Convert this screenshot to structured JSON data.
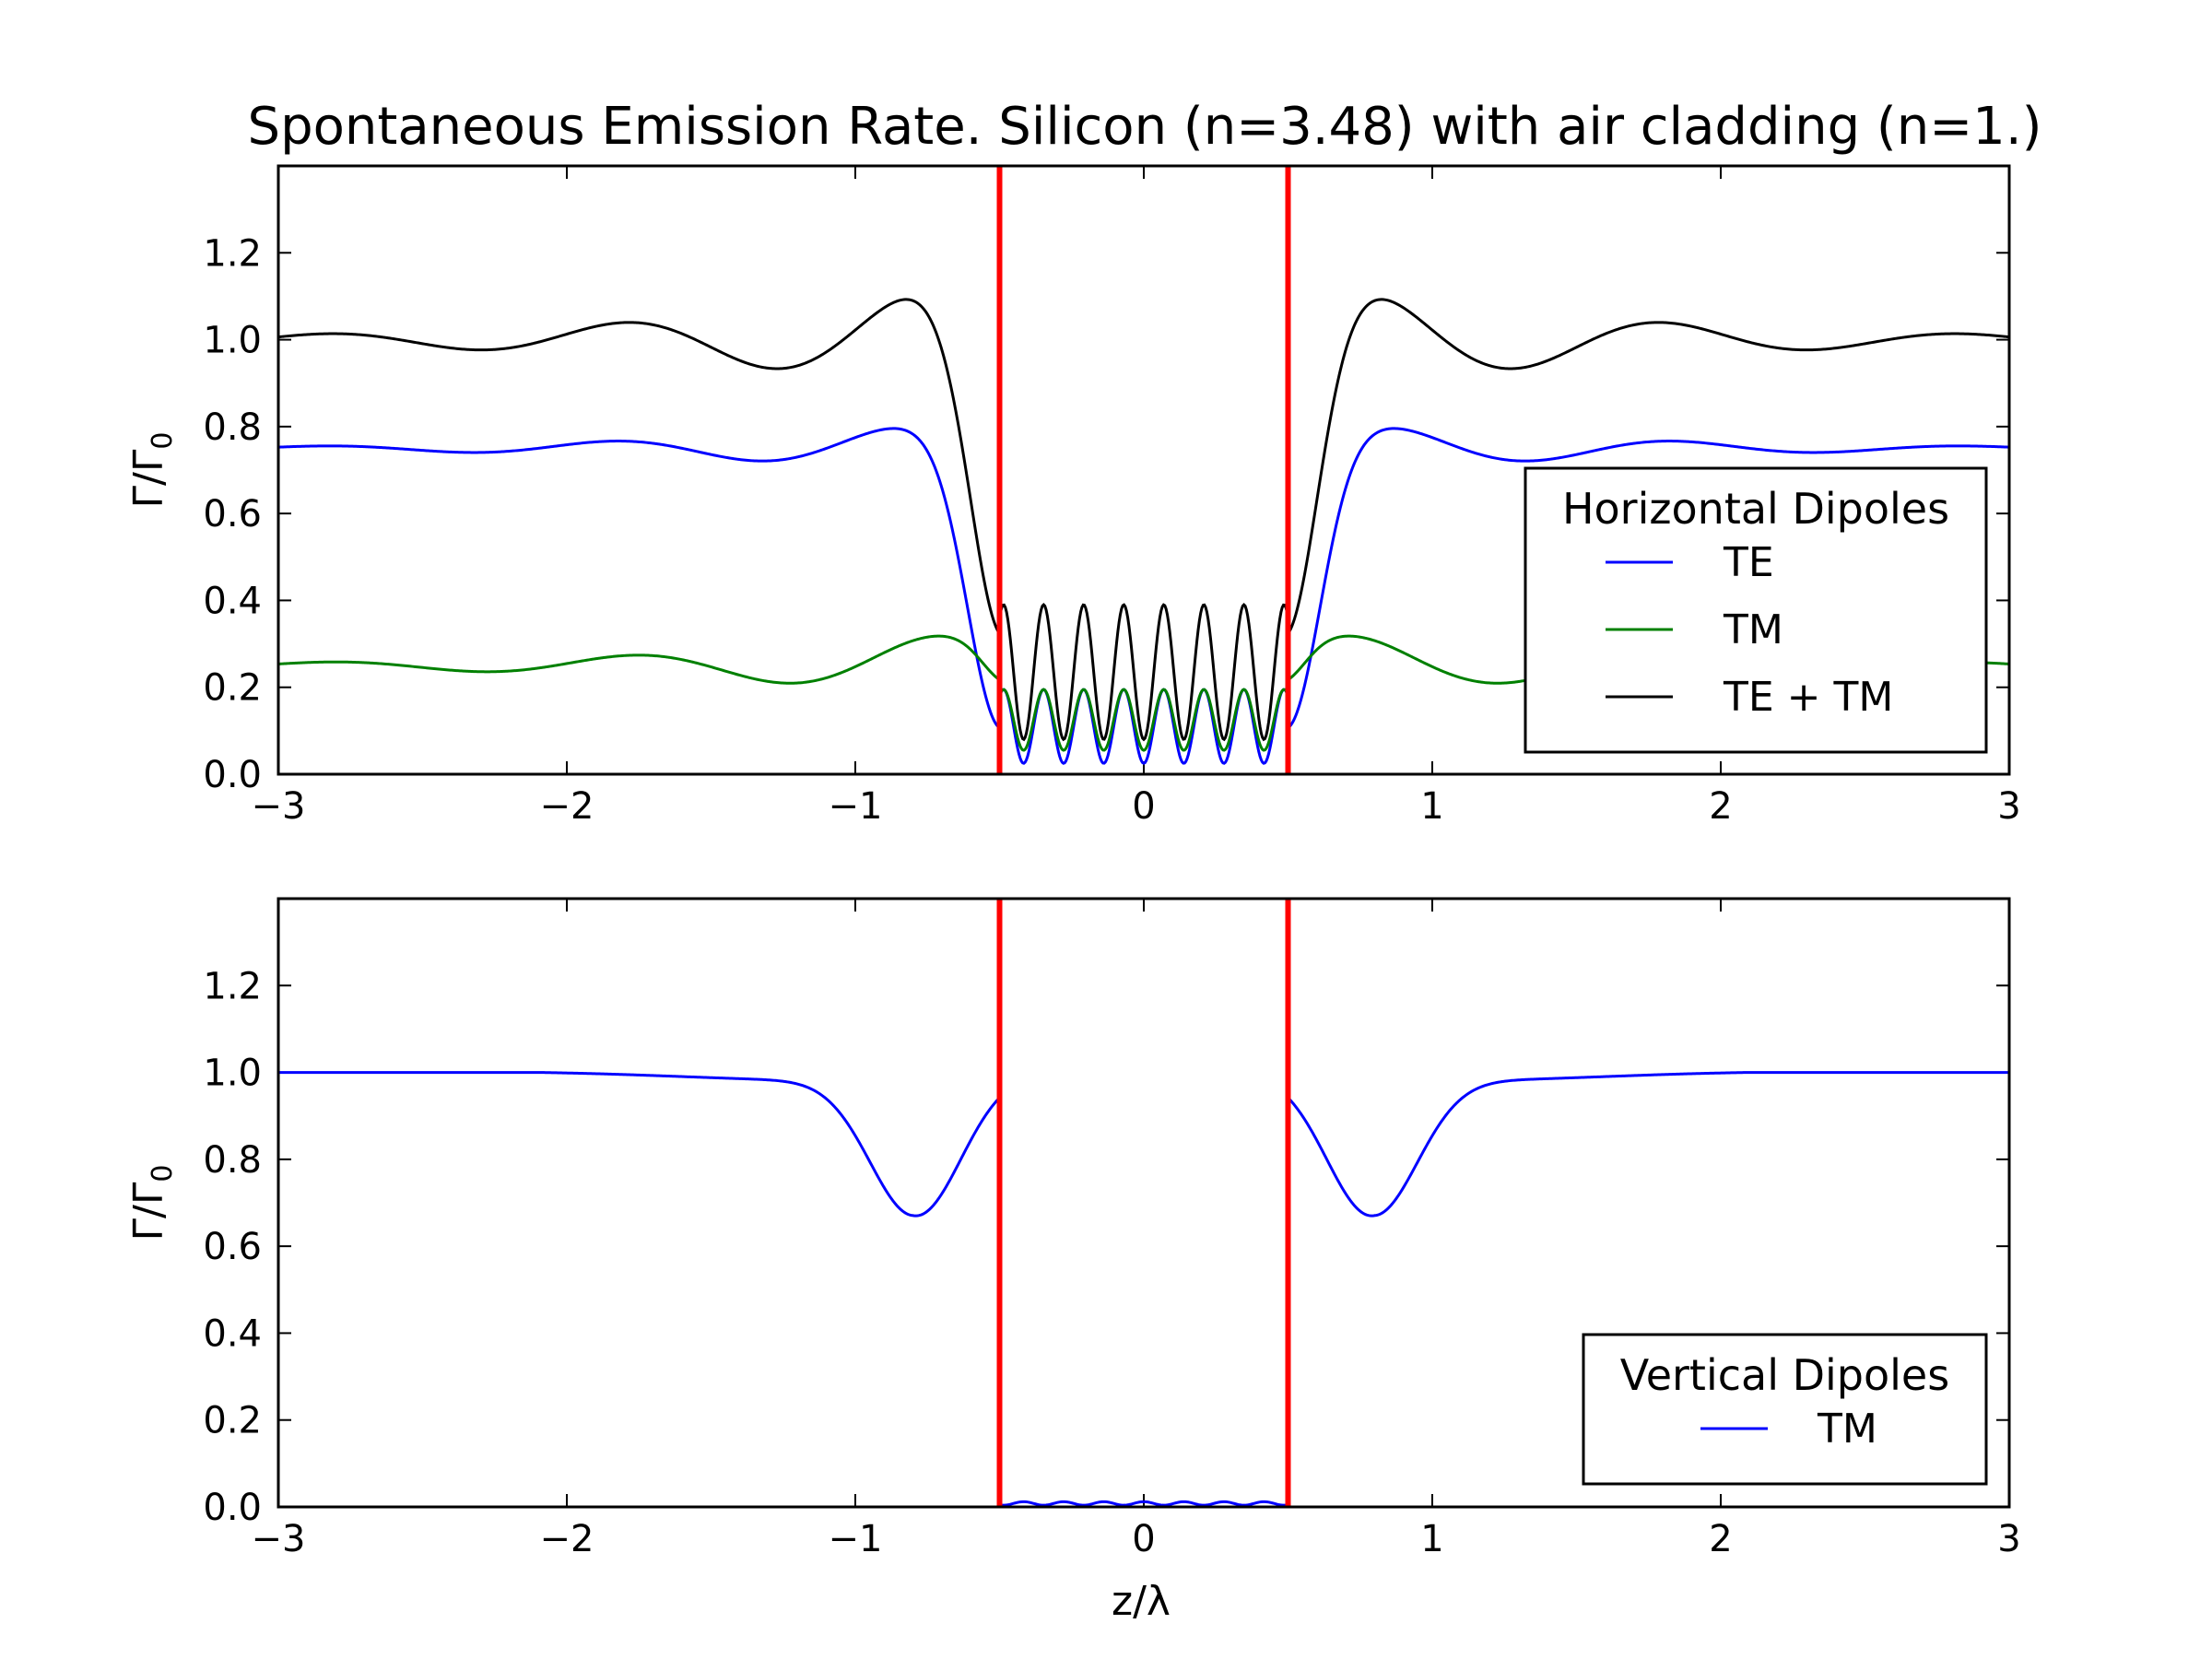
{
  "chart_data": {
    "title": "Spontaneous Emission Rate. Silicon (n=3.48) with air cladding (n=1.)",
    "xlabel": "z/λ",
    "colors": {
      "TE": "#0000ff",
      "TM": "#008000",
      "TE + TM": "#000000",
      "boundary": "#ff0000",
      "vertical_TM": "#0000ff"
    },
    "boundaries": [
      -0.5,
      0.5
    ],
    "panels": [
      {
        "type": "line",
        "ylabel_base": "Γ/Γ",
        "ylabel_sub": "0",
        "xlim": [
          -3,
          3
        ],
        "ylim": [
          0,
          1.4
        ],
        "xticks": [
          -3,
          -2,
          -1,
          0,
          1,
          2,
          3
        ],
        "xtick_labels": [
          "−3",
          "−2",
          "−1",
          "0",
          "1",
          "2",
          "3"
        ],
        "yticks": [
          0,
          0.2,
          0.4,
          0.6,
          0.8,
          1.0,
          1.2
        ],
        "ytick_labels": [
          "0.0",
          "0.2",
          "0.4",
          "0.6",
          "0.8",
          "1.0",
          "1.2"
        ],
        "legend_title": "Horizontal Dipoles",
        "legend_position": "center-right",
        "series": [
          {
            "name": "TE",
            "key": "TE"
          },
          {
            "name": "TM",
            "key": "TM"
          },
          {
            "name": "TE + TM",
            "key": "TE + TM"
          }
        ]
      },
      {
        "type": "line",
        "ylabel_base": "Γ/Γ",
        "ylabel_sub": "0",
        "xlim": [
          -3,
          3
        ],
        "ylim": [
          0,
          1.4
        ],
        "xticks": [
          -3,
          -2,
          -1,
          0,
          1,
          2,
          3
        ],
        "xtick_labels": [
          "−3",
          "−2",
          "−1",
          "0",
          "1",
          "2",
          "3"
        ],
        "yticks": [
          0,
          0.2,
          0.4,
          0.6,
          0.8,
          1.0,
          1.2
        ],
        "ytick_labels": [
          "0.0",
          "0.2",
          "0.4",
          "0.6",
          "0.8",
          "1.0",
          "1.2"
        ],
        "legend_title": "Vertical Dipoles",
        "legend_position": "lower-right",
        "series": [
          {
            "name": "TM",
            "key": "vertical_TM"
          }
        ]
      }
    ]
  }
}
